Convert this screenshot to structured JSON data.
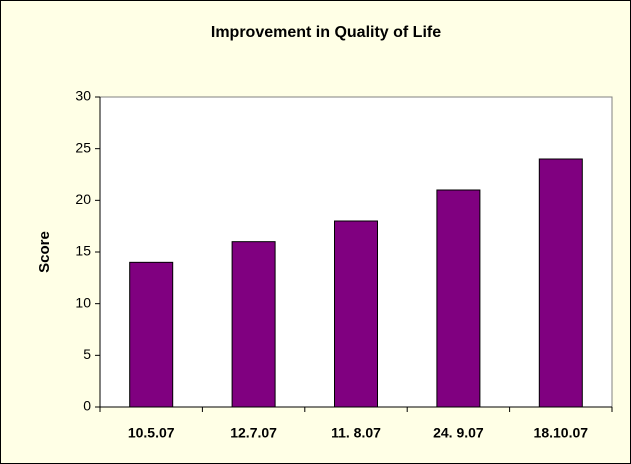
{
  "chart_data": {
    "type": "bar",
    "title": "Improvement in Quality of Life",
    "ylabel": "Score",
    "categories": [
      "10.5.07",
      "12.7.07",
      "11. 8.07",
      "24. 9.07",
      "18.10.07"
    ],
    "values": [
      14,
      16,
      18,
      21,
      24
    ],
    "color": "#800080",
    "ylim": [
      0,
      30
    ],
    "yticks": [
      0,
      5,
      10,
      15,
      20,
      25,
      30
    ],
    "grid": false
  }
}
